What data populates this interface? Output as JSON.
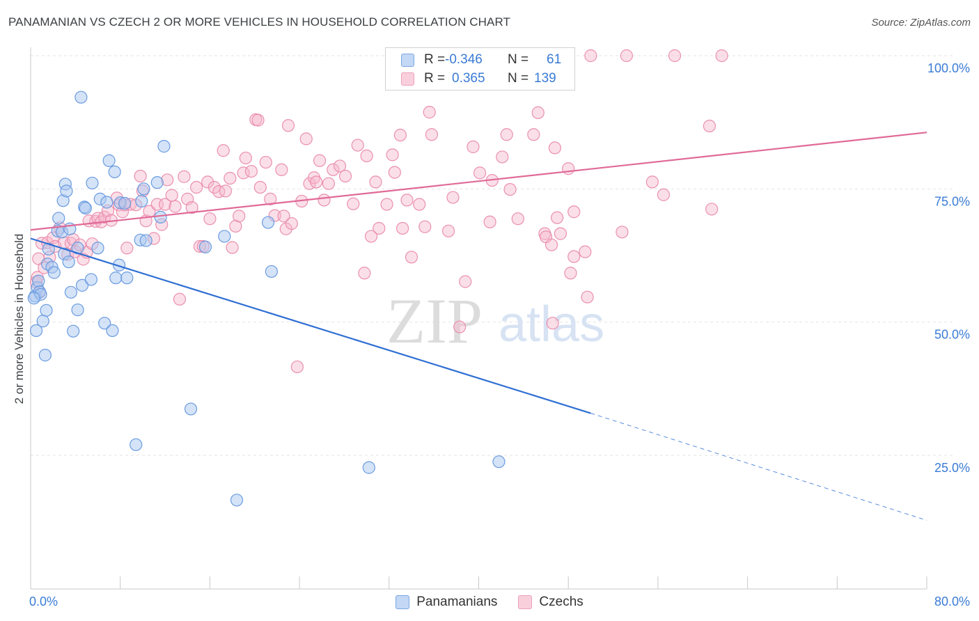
{
  "title": "PANAMANIAN VS CZECH 2 OR MORE VEHICLES IN HOUSEHOLD CORRELATION CHART",
  "source": "Source: ZipAtlas.com",
  "watermark": {
    "zip": "ZIP",
    "atlas": "atlas"
  },
  "legend": {
    "rows": [
      {
        "r_label": "R =",
        "r_value": "-0.346",
        "n_label": "N =",
        "n_value": "61"
      },
      {
        "r_label": "R =",
        "r_value": "0.365",
        "n_label": "N =",
        "n_value": "139"
      }
    ]
  },
  "bottom_legend": {
    "series1": "Panamanians",
    "series2": "Czechs"
  },
  "colors": {
    "blue_fill": "#a9c8f0",
    "blue_stroke": "#6a9be0",
    "blue_line": "#2f6fd3",
    "pink_fill": "#f7b8cc",
    "pink_stroke": "#ea8faf",
    "pink_line": "#e06a96",
    "tick_label": "#3a7bd5"
  },
  "chart_data": {
    "type": "scatter",
    "title": "PANAMANIAN VS CZECH 2 OR MORE VEHICLES IN HOUSEHOLD CORRELATION CHART",
    "xlabel": "",
    "ylabel": "2 or more Vehicles in Household",
    "xlim": [
      0,
      80
    ],
    "ylim": [
      0,
      105
    ],
    "x_tick_labels": [
      "0.0%",
      "80.0%"
    ],
    "y_tick_labels": [
      "25.0%",
      "50.0%",
      "75.0%",
      "100.0%"
    ],
    "y_ticks": [
      25,
      50,
      75,
      100
    ],
    "grid": true,
    "legend_position": "top-center",
    "series": [
      {
        "name": "Panamanians",
        "r": -0.346,
        "n": 61,
        "trend": {
          "x0": 0,
          "y0": 65.7,
          "x1": 50,
          "y1": 32.9,
          "dash_to_x": 80,
          "dash_to_y": 12.8
        },
        "points": [
          [
            0.4,
            54.9
          ],
          [
            0.5,
            48.4
          ],
          [
            0.6,
            56.5
          ],
          [
            0.7,
            57.7
          ],
          [
            0.8,
            55.7
          ],
          [
            0.9,
            55.2
          ],
          [
            1.1,
            50.2
          ],
          [
            1.3,
            43.8
          ],
          [
            1.4,
            52.2
          ],
          [
            1.5,
            60.9
          ],
          [
            1.6,
            63.7
          ],
          [
            1.9,
            60.3
          ],
          [
            2.1,
            59.3
          ],
          [
            2.4,
            67.1
          ],
          [
            2.5,
            69.5
          ],
          [
            2.8,
            66.9
          ],
          [
            2.9,
            72.8
          ],
          [
            3.0,
            62.8
          ],
          [
            3.1,
            75.9
          ],
          [
            3.2,
            74.6
          ],
          [
            3.4,
            61.3
          ],
          [
            3.5,
            67.5
          ],
          [
            3.6,
            55.6
          ],
          [
            3.8,
            48.3
          ],
          [
            4.2,
            63.9
          ],
          [
            4.2,
            52.3
          ],
          [
            4.6,
            56.9
          ],
          [
            4.5,
            92.2
          ],
          [
            4.8,
            71.6
          ],
          [
            4.9,
            71.4
          ],
          [
            5.4,
            58.0
          ],
          [
            5.5,
            76.1
          ],
          [
            6.0,
            63.9
          ],
          [
            6.2,
            73.1
          ],
          [
            6.6,
            49.8
          ],
          [
            6.8,
            72.5
          ],
          [
            7.0,
            80.3
          ],
          [
            7.3,
            48.4
          ],
          [
            7.5,
            78.2
          ],
          [
            7.6,
            58.3
          ],
          [
            7.9,
            60.7
          ],
          [
            8.0,
            72.4
          ],
          [
            8.4,
            72.3
          ],
          [
            8.6,
            58.3
          ],
          [
            9.4,
            27.0
          ],
          [
            9.8,
            65.4
          ],
          [
            9.9,
            72.7
          ],
          [
            10.1,
            75.0
          ],
          [
            10.3,
            65.3
          ],
          [
            11.3,
            76.2
          ],
          [
            11.6,
            69.7
          ],
          [
            11.9,
            83.0
          ],
          [
            14.3,
            33.7
          ],
          [
            15.6,
            64.1
          ],
          [
            17.3,
            66.1
          ],
          [
            18.4,
            16.6
          ],
          [
            21.2,
            68.7
          ],
          [
            21.5,
            59.5
          ],
          [
            30.2,
            22.7
          ],
          [
            41.8,
            23.8
          ],
          [
            0.3,
            54.5
          ]
        ]
      },
      {
        "name": "Czechs",
        "r": 0.365,
        "n": 139,
        "trend": {
          "x0": 0,
          "y0": 67.3,
          "x1": 80,
          "y1": 85.6
        },
        "points": [
          [
            0.5,
            57.5
          ],
          [
            0.6,
            58.4
          ],
          [
            0.7,
            61.9
          ],
          [
            0.8,
            55.6
          ],
          [
            1.0,
            64.8
          ],
          [
            1.2,
            60.2
          ],
          [
            1.5,
            64.9
          ],
          [
            1.7,
            62.2
          ],
          [
            2.0,
            65.8
          ],
          [
            2.2,
            64.2
          ],
          [
            2.6,
            67.7
          ],
          [
            3.0,
            64.9
          ],
          [
            3.3,
            62.7
          ],
          [
            3.6,
            64.8
          ],
          [
            3.8,
            65.5
          ],
          [
            4.0,
            63.2
          ],
          [
            4.4,
            64.5
          ],
          [
            4.7,
            61.8
          ],
          [
            5.0,
            63.1
          ],
          [
            5.2,
            69.0
          ],
          [
            5.5,
            64.7
          ],
          [
            5.8,
            68.9
          ],
          [
            6.0,
            69.5
          ],
          [
            6.3,
            68.8
          ],
          [
            6.6,
            69.7
          ],
          [
            6.9,
            70.9
          ],
          [
            7.2,
            69.1
          ],
          [
            7.7,
            73.3
          ],
          [
            7.9,
            72.0
          ],
          [
            8.2,
            70.7
          ],
          [
            8.4,
            72.0
          ],
          [
            8.6,
            63.9
          ],
          [
            8.9,
            72.1
          ],
          [
            9.4,
            72.0
          ],
          [
            9.8,
            77.4
          ],
          [
            10.0,
            74.6
          ],
          [
            10.3,
            69.0
          ],
          [
            10.6,
            70.8
          ],
          [
            11.0,
            65.7
          ],
          [
            11.3,
            72.1
          ],
          [
            11.7,
            68.3
          ],
          [
            12.0,
            72.1
          ],
          [
            12.2,
            76.7
          ],
          [
            12.6,
            73.8
          ],
          [
            12.9,
            71.7
          ],
          [
            13.3,
            54.3
          ],
          [
            13.7,
            77.3
          ],
          [
            14.0,
            73.1
          ],
          [
            14.4,
            71.5
          ],
          [
            14.8,
            75.3
          ],
          [
            15.1,
            64.2
          ],
          [
            15.4,
            64.2
          ],
          [
            15.8,
            76.3
          ],
          [
            16.0,
            69.4
          ],
          [
            16.4,
            75.3
          ],
          [
            16.8,
            74.5
          ],
          [
            17.2,
            82.2
          ],
          [
            17.4,
            74.6
          ],
          [
            17.8,
            77.0
          ],
          [
            18.0,
            64.0
          ],
          [
            18.3,
            68.0
          ],
          [
            18.6,
            69.9
          ],
          [
            19.0,
            78.0
          ],
          [
            19.2,
            80.8
          ],
          [
            19.7,
            78.3
          ],
          [
            20.1,
            88.0
          ],
          [
            20.3,
            87.9
          ],
          [
            20.5,
            75.3
          ],
          [
            21.0,
            80.0
          ],
          [
            21.4,
            73.1
          ],
          [
            21.8,
            70.0
          ],
          [
            22.4,
            78.6
          ],
          [
            22.6,
            69.9
          ],
          [
            22.8,
            67.5
          ],
          [
            23.3,
            68.5
          ],
          [
            23.0,
            86.9
          ],
          [
            23.8,
            41.6
          ],
          [
            24.2,
            72.7
          ],
          [
            24.6,
            84.4
          ],
          [
            24.9,
            76.0
          ],
          [
            25.3,
            77.1
          ],
          [
            25.5,
            76.3
          ],
          [
            25.8,
            80.3
          ],
          [
            26.2,
            72.9
          ],
          [
            26.6,
            76.0
          ],
          [
            27.0,
            78.6
          ],
          [
            27.6,
            79.3
          ],
          [
            28.1,
            77.4
          ],
          [
            28.8,
            72.2
          ],
          [
            29.2,
            83.2
          ],
          [
            30.0,
            81.2
          ],
          [
            29.8,
            59.2
          ],
          [
            30.4,
            66.1
          ],
          [
            30.8,
            76.3
          ],
          [
            31.1,
            67.6
          ],
          [
            31.8,
            72.1
          ],
          [
            32.3,
            81.4
          ],
          [
            32.5,
            78.1
          ],
          [
            33.0,
            85.1
          ],
          [
            33.6,
            72.9
          ],
          [
            34.0,
            62.2
          ],
          [
            34.7,
            72.1
          ],
          [
            35.2,
            67.9
          ],
          [
            35.6,
            89.4
          ],
          [
            35.8,
            85.2
          ],
          [
            37.3,
            67.1
          ],
          [
            37.7,
            73.4
          ],
          [
            38.3,
            49.1
          ],
          [
            38.8,
            57.6
          ],
          [
            39.5,
            82.9
          ],
          [
            40.1,
            78.0
          ],
          [
            41.0,
            68.8
          ],
          [
            41.2,
            76.6
          ],
          [
            42.1,
            81.0
          ],
          [
            42.5,
            85.2
          ],
          [
            42.8,
            74.9
          ],
          [
            43.5,
            69.4
          ],
          [
            44.9,
            85.2
          ],
          [
            45.3,
            89.3
          ],
          [
            45.4,
            99.9
          ],
          [
            45.9,
            66.6
          ],
          [
            46.0,
            66.0
          ],
          [
            46.5,
            64.5
          ],
          [
            46.8,
            82.7
          ],
          [
            47.0,
            69.6
          ],
          [
            47.3,
            66.6
          ],
          [
            48.0,
            78.8
          ],
          [
            48.2,
            59.2
          ],
          [
            48.5,
            62.3
          ],
          [
            48.5,
            70.7
          ],
          [
            49.7,
            54.7
          ],
          [
            49.5,
            63.2
          ],
          [
            50.0,
            100.0
          ],
          [
            52.8,
            66.9
          ],
          [
            53.2,
            100.0
          ],
          [
            55.5,
            76.3
          ],
          [
            56.5,
            73.9
          ],
          [
            57.5,
            100.0
          ],
          [
            60.6,
            86.8
          ],
          [
            60.8,
            71.2
          ],
          [
            61.7,
            100.0
          ],
          [
            46.6,
            49.8
          ],
          [
            33.2,
            67.6
          ]
        ]
      }
    ]
  }
}
